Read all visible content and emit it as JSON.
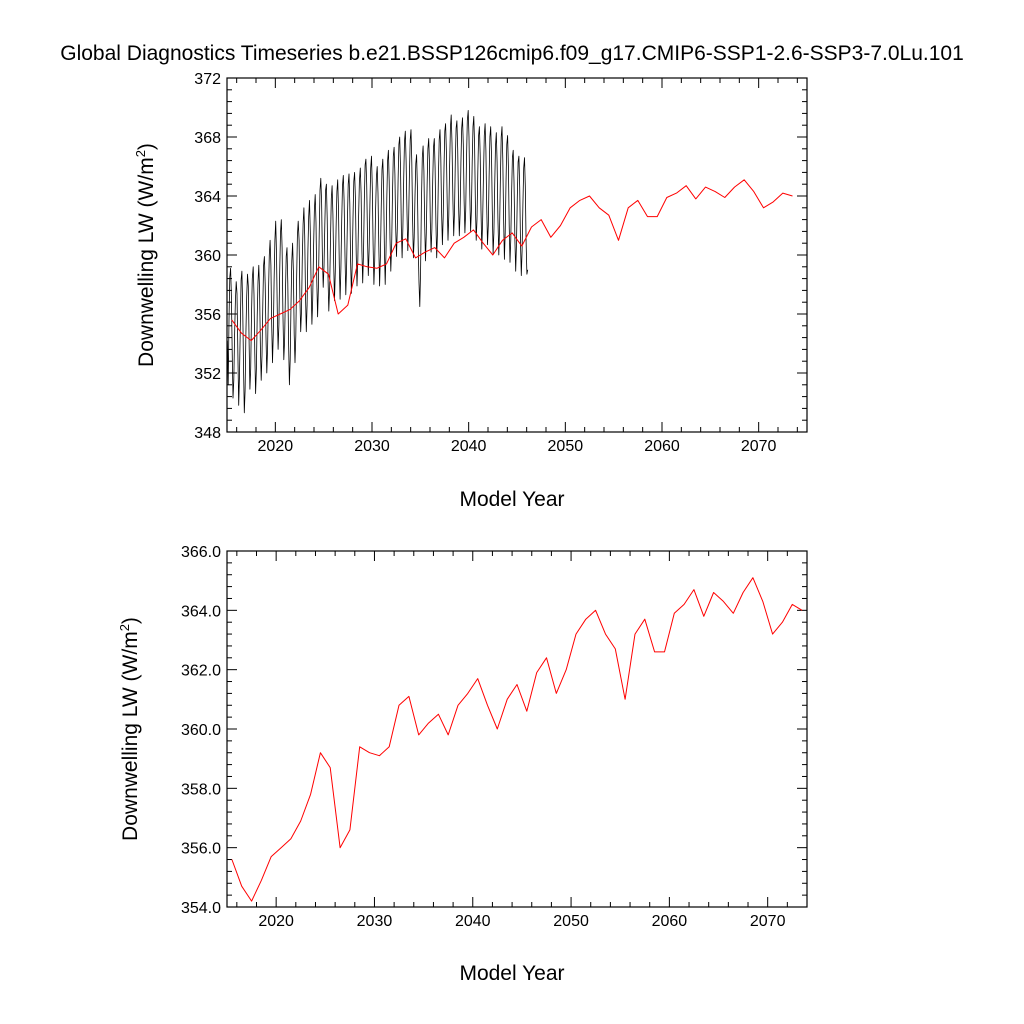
{
  "title": "Global Diagnostics Timeseries b.e21.BSSP126cmip6.f09_g17.CMIP6-SSP1-2.6-SSP3-7.0Lu.101",
  "colors": {
    "monthly": "#000000",
    "annual": "#ff0000",
    "axes": "#000000"
  },
  "chart_data": [
    {
      "type": "line",
      "xlabel": "Model Year",
      "ylabel_main": "Downwelling LW (W/m",
      "ylabel_sup": "2",
      "ylabel_close": ")",
      "xlim": [
        2015,
        2075
      ],
      "ylim": [
        348,
        372
      ],
      "xticks": [
        2020,
        2030,
        2040,
        2050,
        2060,
        2070
      ],
      "yticks": [
        348,
        352,
        356,
        360,
        364,
        368,
        372
      ],
      "ytick_labels": [
        "348",
        "352",
        "356",
        "360",
        "364",
        "368",
        "372"
      ],
      "grid": false,
      "series": [
        {
          "style": "monthly",
          "x_start": 2015.04,
          "x_step": 0.0833,
          "values": [
            354.2,
            351.2,
            355.6,
            358.5,
            359.1,
            357.2,
            353.4,
            350.3,
            351.5,
            354.6,
            356.9,
            358.2,
            357.4,
            353.2,
            349.8,
            351.9,
            355.1,
            358.3,
            358.9,
            356.5,
            352.5,
            349.3,
            350.8,
            354.7,
            357.2,
            358.7,
            357.9,
            354.1,
            350.9,
            352.3,
            356.0,
            358.4,
            359.2,
            357.3,
            353.3,
            350.6,
            352.3,
            355.8,
            358.2,
            359.3,
            357.5,
            353.7,
            351.5,
            353.2,
            356.6,
            359.3,
            359.9,
            358.0,
            354.4,
            352.0,
            353.7,
            357.5,
            360.0,
            361.0,
            359.3,
            355.3,
            352.7,
            354.7,
            358.3,
            361.0,
            362.3,
            360.1,
            356.1,
            353.6,
            355.3,
            358.9,
            361.5,
            362.4,
            360.5,
            356.1,
            352.9,
            354.2,
            357.3,
            359.9,
            360.5,
            358.1,
            354.0,
            351.2,
            352.9,
            356.6,
            359.6,
            360.8,
            358.9,
            354.6,
            352.7,
            354.5,
            358.3,
            361.3,
            362.3,
            361.0,
            357.1,
            354.8,
            356.2,
            359.8,
            362.1,
            363.2,
            361.3,
            357.3,
            354.8,
            356.6,
            360.3,
            362.6,
            363.7,
            361.6,
            358.0,
            355.3,
            357.0,
            360.3,
            363.1,
            364.1,
            362.2,
            358.2,
            355.8,
            357.8,
            361.4,
            364.4,
            365.2,
            363.6,
            359.9,
            357.8,
            359.2,
            362.0,
            364.4,
            364.8,
            362.5,
            358.5,
            356.2,
            357.9,
            361.1,
            363.8,
            364.7,
            362.8,
            359.4,
            356.9,
            358.9,
            361.9,
            364.3,
            365.1,
            363.1,
            359.3,
            357.0,
            359.1,
            362.3,
            364.7,
            365.4,
            363.7,
            359.9,
            357.3,
            359.2,
            362.3,
            364.8,
            365.5,
            363.5,
            359.6,
            357.4,
            359.3,
            362.5,
            365.0,
            365.6,
            363.9,
            360.1,
            357.9,
            359.6,
            362.6,
            365.0,
            365.9,
            364.2,
            360.3,
            358.1,
            360.1,
            363.6,
            366.1,
            366.5,
            364.8,
            361.2,
            358.6,
            360.3,
            363.4,
            365.9,
            366.7,
            364.6,
            360.7,
            358.0,
            359.6,
            362.8,
            365.3,
            366.0,
            364.2,
            360.6,
            357.9,
            359.9,
            363.1,
            365.8,
            366.5,
            364.5,
            360.4,
            358.0,
            360.2,
            363.8,
            366.4,
            367.1,
            365.0,
            361.1,
            358.9,
            360.8,
            364.2,
            366.7,
            367.3,
            365.5,
            361.8,
            359.9,
            361.8,
            365.1,
            367.5,
            368.0,
            366.0,
            362.0,
            359.8,
            361.9,
            365.2,
            367.7,
            368.4,
            366.4,
            362.8,
            360.3,
            362.2,
            365.4,
            367.8,
            368.5,
            366.3,
            362.4,
            359.8,
            361.2,
            364.0,
            366.2,
            366.8,
            364.6,
            360.6,
            358.1,
            356.5,
            359.0,
            363.5,
            366.6,
            367.4,
            365.7,
            362.0,
            359.6,
            361.5,
            364.7,
            367.2,
            367.9,
            366.2,
            362.3,
            360.2,
            361.8,
            365.0,
            367.3,
            367.9,
            365.9,
            362.2,
            359.8,
            361.8,
            365.3,
            367.8,
            368.5,
            366.6,
            362.9,
            360.7,
            362.6,
            365.9,
            368.4,
            368.9,
            367.0,
            363.5,
            361.0,
            362.7,
            366.0,
            368.6,
            369.5,
            367.6,
            363.7,
            361.3,
            362.9,
            366.3,
            368.6,
            369.1,
            367.2,
            363.6,
            361.3,
            362.8,
            366.2,
            368.6,
            369.3,
            367.5,
            363.7,
            361.5,
            363.0,
            366.5,
            369.1,
            369.8,
            368.0,
            364.1,
            361.6,
            363.0,
            366.3,
            368.7,
            369.4,
            367.4,
            363.4,
            361.0,
            362.4,
            365.6,
            368.1,
            368.7,
            366.8,
            363.0,
            360.4,
            362.2,
            365.5,
            368.1,
            368.9,
            367.1,
            363.3,
            360.7,
            362.0,
            365.3,
            368.0,
            368.7,
            366.8,
            363.0,
            360.1,
            361.5,
            364.7,
            367.4,
            368.3,
            366.3,
            362.5,
            360.0,
            361.9,
            365.2,
            368.0,
            368.7,
            366.5,
            362.5,
            359.7,
            361.5,
            364.9,
            367.5,
            368.1,
            366.0,
            362.0,
            359.5,
            361.1,
            364.2,
            366.6,
            367.1,
            365.0,
            361.0,
            358.9,
            360.8,
            363.9,
            366.3,
            366.7,
            364.6,
            360.8,
            358.6,
            360.3,
            363.4,
            365.9,
            366.6,
            364.7,
            360.9,
            358.7,
            359.0
          ]
        },
        {
          "style": "annual",
          "x": [
            2015.5,
            2016.5,
            2017.5,
            2018.5,
            2019.5,
            2020.5,
            2021.5,
            2022.5,
            2023.5,
            2024.5,
            2025.5,
            2026.5,
            2027.5,
            2028.5,
            2029.5,
            2030.5,
            2031.5,
            2032.5,
            2033.5,
            2034.5,
            2035.5,
            2036.5,
            2037.5,
            2038.5,
            2039.5,
            2040.5,
            2041.5,
            2042.5,
            2043.5,
            2044.5,
            2045.5,
            2046.5,
            2047.5,
            2048.5,
            2049.5,
            2050.5,
            2051.5,
            2052.5,
            2053.5,
            2054.5,
            2055.5,
            2056.5,
            2057.5,
            2058.5,
            2059.5,
            2060.5,
            2061.5,
            2062.5,
            2063.5,
            2064.5,
            2065.5,
            2066.5,
            2067.5,
            2068.5,
            2069.5,
            2070.5,
            2071.5,
            2072.5,
            2073.5
          ],
          "values": [
            355.6,
            354.7,
            354.2,
            354.9,
            355.7,
            356.0,
            356.3,
            356.9,
            357.8,
            359.2,
            358.7,
            356.0,
            356.6,
            359.4,
            359.2,
            359.1,
            359.4,
            360.8,
            361.1,
            359.8,
            360.2,
            360.5,
            359.8,
            360.8,
            361.2,
            361.7,
            360.8,
            360.0,
            361.0,
            361.5,
            360.6,
            361.9,
            362.4,
            361.2,
            362.0,
            363.2,
            363.7,
            364.0,
            363.2,
            362.7,
            361.0,
            363.2,
            363.7,
            362.6,
            362.6,
            363.9,
            364.2,
            364.7,
            363.8,
            364.6,
            364.3,
            363.9,
            364.6,
            365.1,
            364.3,
            363.2,
            363.6,
            364.2,
            364.0
          ]
        }
      ]
    },
    {
      "type": "line",
      "xlabel": "Model Year",
      "ylabel_main": "Downwelling LW (W/m",
      "ylabel_sup": "2",
      "ylabel_close": ")",
      "xlim": [
        2015,
        2074
      ],
      "ylim": [
        354,
        366
      ],
      "xticks": [
        2020,
        2030,
        2040,
        2050,
        2060,
        2070
      ],
      "yticks": [
        354,
        356,
        358,
        360,
        362,
        364,
        366
      ],
      "ytick_labels": [
        "354.0",
        "356.0",
        "358.0",
        "360.0",
        "362.0",
        "364.0",
        "366.0"
      ],
      "grid": false,
      "series": [
        {
          "style": "annual",
          "x": [
            2015.5,
            2016.5,
            2017.5,
            2018.5,
            2019.5,
            2020.5,
            2021.5,
            2022.5,
            2023.5,
            2024.5,
            2025.5,
            2026.5,
            2027.5,
            2028.5,
            2029.5,
            2030.5,
            2031.5,
            2032.5,
            2033.5,
            2034.5,
            2035.5,
            2036.5,
            2037.5,
            2038.5,
            2039.5,
            2040.5,
            2041.5,
            2042.5,
            2043.5,
            2044.5,
            2045.5,
            2046.5,
            2047.5,
            2048.5,
            2049.5,
            2050.5,
            2051.5,
            2052.5,
            2053.5,
            2054.5,
            2055.5,
            2056.5,
            2057.5,
            2058.5,
            2059.5,
            2060.5,
            2061.5,
            2062.5,
            2063.5,
            2064.5,
            2065.5,
            2066.5,
            2067.5,
            2068.5,
            2069.5,
            2070.5,
            2071.5,
            2072.5,
            2073.5
          ],
          "values": [
            355.6,
            354.7,
            354.2,
            354.9,
            355.7,
            356.0,
            356.3,
            356.9,
            357.8,
            359.2,
            358.7,
            356.0,
            356.6,
            359.4,
            359.2,
            359.1,
            359.4,
            360.8,
            361.1,
            359.8,
            360.2,
            360.5,
            359.8,
            360.8,
            361.2,
            361.7,
            360.8,
            360.0,
            361.0,
            361.5,
            360.6,
            361.9,
            362.4,
            361.2,
            362.0,
            363.2,
            363.7,
            364.0,
            363.2,
            362.7,
            361.0,
            363.2,
            363.7,
            362.6,
            362.6,
            363.9,
            364.2,
            364.7,
            363.8,
            364.6,
            364.3,
            363.9,
            364.6,
            365.1,
            364.3,
            363.2,
            363.6,
            364.2,
            364.0
          ]
        }
      ]
    }
  ]
}
